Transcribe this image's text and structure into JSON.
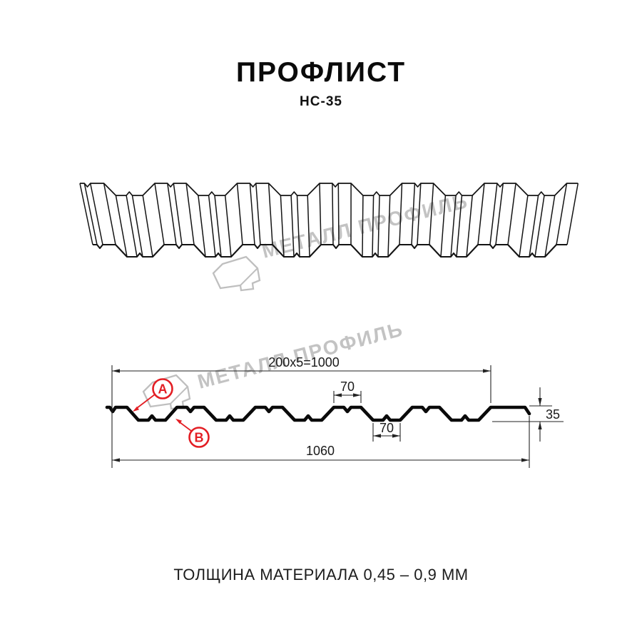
{
  "header": {
    "title": "ПРОФЛИСТ",
    "subtitle": "НС-35"
  },
  "watermark": {
    "brand": "МЕТАЛЛ ПРОФИЛЬ",
    "color": "#c3c3c3"
  },
  "diagram": {
    "dimensions": {
      "modular_width": "200x5=1000",
      "rib_top_width": "70",
      "rib_bottom_width": "70",
      "overall_width": "1060",
      "profile_height": "35"
    },
    "markers": {
      "a": "А",
      "b": "В"
    },
    "accent_color": "#e31e24"
  },
  "footer": {
    "thickness_label": "ТОЛЩИНА МАТЕРИАЛА 0,45 – 0,9 ММ"
  }
}
